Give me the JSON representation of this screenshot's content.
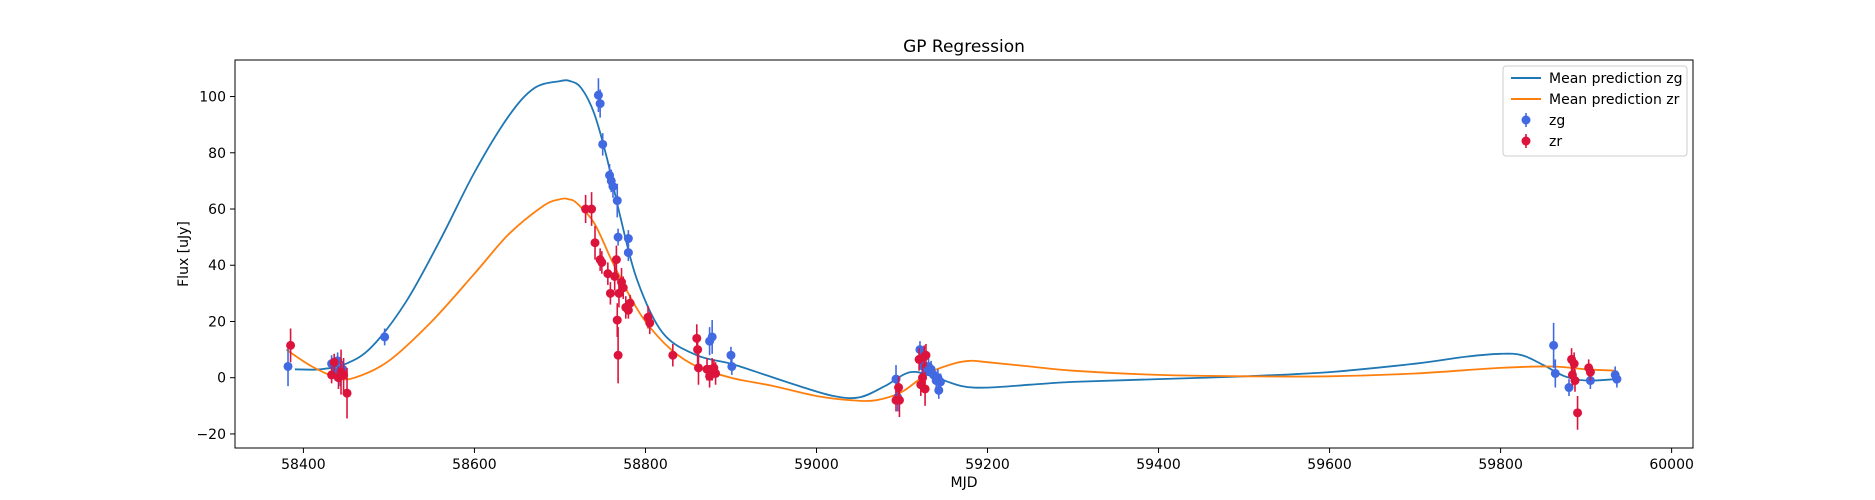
{
  "chart_data": {
    "type": "scatter",
    "title": "GP Regression",
    "xlabel": "MJD",
    "ylabel": "Flux [uJy]",
    "xlim": [
      58320,
      60025
    ],
    "ylim": [
      -25,
      113
    ],
    "xticks": [
      58400,
      58600,
      58800,
      59000,
      59200,
      59400,
      59600,
      59800,
      60000
    ],
    "yticks": [
      -20,
      0,
      20,
      40,
      60,
      80,
      100
    ],
    "legend_position": "top-right",
    "colors": {
      "mean_zg": "#1f77b4",
      "mean_zr": "#ff7f0e",
      "zg": "#4169e1",
      "zr": "#dc143c"
    },
    "lines": [
      {
        "name": "Mean prediction zg",
        "color_key": "mean_zg",
        "x": [
          58390,
          58420,
          58450,
          58480,
          58520,
          58560,
          58600,
          58640,
          58670,
          58700,
          58712,
          58725,
          58740,
          58755,
          58770,
          58790,
          58820,
          58860,
          58900,
          58940,
          58980,
          59020,
          59050,
          59080,
          59110,
          59140,
          59170,
          59200,
          59250,
          59300,
          59400,
          59500,
          59600,
          59700,
          59760,
          59800,
          59825,
          59850,
          59875,
          59900,
          59935
        ],
        "y": [
          3,
          3,
          5,
          11,
          27,
          49,
          73,
          93,
          103,
          105.5,
          105.5,
          103,
          94,
          78,
          58,
          35,
          16,
          8,
          5,
          1,
          -3,
          -6.5,
          -7,
          -3,
          2,
          0,
          -3,
          -3.5,
          -2.5,
          -1.5,
          -0.5,
          0.5,
          2,
          5,
          7.5,
          8.5,
          8,
          4.5,
          0.5,
          -1,
          -0.5
        ]
      },
      {
        "name": "Mean prediction zr",
        "color_key": "mean_zr",
        "x": [
          58380,
          58410,
          58440,
          58460,
          58500,
          58550,
          58600,
          58640,
          58680,
          58700,
          58710,
          58720,
          58740,
          58760,
          58780,
          58800,
          58830,
          58860,
          58900,
          58950,
          59000,
          59040,
          59070,
          59100,
          59130,
          59160,
          59180,
          59200,
          59250,
          59300,
          59400,
          59500,
          59600,
          59700,
          59800,
          59860,
          59900,
          59935
        ],
        "y": [
          10,
          4,
          0,
          0,
          6,
          20,
          37,
          51,
          61,
          63.5,
          63.5,
          62,
          55,
          42,
          30,
          20,
          10,
          4,
          0,
          -3,
          -6.5,
          -8,
          -8,
          -5,
          1.5,
          5,
          6,
          5.5,
          4,
          2.5,
          1,
          0.5,
          0.5,
          1.5,
          3.5,
          4,
          3,
          2.5
        ]
      }
    ],
    "series": [
      {
        "name": "zg",
        "color_key": "zg",
        "points": [
          {
            "x": 58382,
            "y": 4,
            "err": 7
          },
          {
            "x": 58433,
            "y": 5,
            "err": 3
          },
          {
            "x": 58437,
            "y": 2,
            "err": 3
          },
          {
            "x": 58440,
            "y": 6,
            "err": 3
          },
          {
            "x": 58443,
            "y": 1,
            "err": 4
          },
          {
            "x": 58446,
            "y": 3,
            "err": 3
          },
          {
            "x": 58495,
            "y": 14.5,
            "err": 3
          },
          {
            "x": 58745,
            "y": 100.5,
            "err": 6
          },
          {
            "x": 58747,
            "y": 97.5,
            "err": 5
          },
          {
            "x": 58750,
            "y": 83,
            "err": 4
          },
          {
            "x": 58758,
            "y": 72,
            "err": 4
          },
          {
            "x": 58760,
            "y": 70,
            "err": 4
          },
          {
            "x": 58762,
            "y": 68,
            "err": 4
          },
          {
            "x": 58767,
            "y": 63,
            "err": 6
          },
          {
            "x": 58768,
            "y": 50,
            "err": 3
          },
          {
            "x": 58780,
            "y": 49.5,
            "err": 3
          },
          {
            "x": 58780,
            "y": 44.5,
            "err": 3
          },
          {
            "x": 58875,
            "y": 13,
            "err": 5
          },
          {
            "x": 58878,
            "y": 14.5,
            "err": 6
          },
          {
            "x": 58900,
            "y": 8,
            "err": 3
          },
          {
            "x": 58901,
            "y": 4,
            "err": 3
          },
          {
            "x": 59093,
            "y": -0.5,
            "err": 5
          },
          {
            "x": 59095,
            "y": -7,
            "err": 5
          },
          {
            "x": 59121,
            "y": 10,
            "err": 3
          },
          {
            "x": 59125,
            "y": 4,
            "err": 3
          },
          {
            "x": 59128,
            "y": 2.5,
            "err": 3
          },
          {
            "x": 59131,
            "y": 4,
            "err": 3
          },
          {
            "x": 59134,
            "y": 3,
            "err": 3
          },
          {
            "x": 59137,
            "y": 1,
            "err": 3
          },
          {
            "x": 59140,
            "y": -1,
            "err": 3
          },
          {
            "x": 59142,
            "y": 0,
            "err": 3
          },
          {
            "x": 59143,
            "y": -4.5,
            "err": 3
          },
          {
            "x": 59145,
            "y": -1.5,
            "err": 3
          },
          {
            "x": 59862,
            "y": 11.5,
            "err": 8
          },
          {
            "x": 59864,
            "y": 1.5,
            "err": 5
          },
          {
            "x": 59880,
            "y": -3.5,
            "err": 3
          },
          {
            "x": 59905,
            "y": -1,
            "err": 3
          },
          {
            "x": 59934,
            "y": 1,
            "err": 3
          },
          {
            "x": 59936,
            "y": -0.5,
            "err": 3
          }
        ]
      },
      {
        "name": "zr",
        "color_key": "zr",
        "points": [
          {
            "x": 58385,
            "y": 11.5,
            "err": 6
          },
          {
            "x": 58433,
            "y": 1,
            "err": 3
          },
          {
            "x": 58436,
            "y": 5.5,
            "err": 3
          },
          {
            "x": 58441,
            "y": 0,
            "err": 4
          },
          {
            "x": 58444,
            "y": 2,
            "err": 8
          },
          {
            "x": 58447,
            "y": 1,
            "err": 6
          },
          {
            "x": 58451,
            "y": -5.5,
            "err": 9
          },
          {
            "x": 58730,
            "y": 60,
            "err": 5
          },
          {
            "x": 58737,
            "y": 60,
            "err": 6
          },
          {
            "x": 58741,
            "y": 48,
            "err": 6
          },
          {
            "x": 58747,
            "y": 42,
            "err": 4
          },
          {
            "x": 58749,
            "y": 41,
            "err": 4
          },
          {
            "x": 58756,
            "y": 37,
            "err": 4
          },
          {
            "x": 58759,
            "y": 30,
            "err": 4
          },
          {
            "x": 58764,
            "y": 36,
            "err": 5
          },
          {
            "x": 58766,
            "y": 42,
            "err": 5
          },
          {
            "x": 58767,
            "y": 20.5,
            "err": 6
          },
          {
            "x": 58768,
            "y": 8,
            "err": 10
          },
          {
            "x": 58769,
            "y": 30,
            "err": 5
          },
          {
            "x": 58772,
            "y": 34,
            "err": 5
          },
          {
            "x": 58774,
            "y": 32,
            "err": 4
          },
          {
            "x": 58777,
            "y": 25,
            "err": 4
          },
          {
            "x": 58780,
            "y": 24,
            "err": 3
          },
          {
            "x": 58782,
            "y": 26.5,
            "err": 3
          },
          {
            "x": 58803,
            "y": 21.5,
            "err": 4
          },
          {
            "x": 58805,
            "y": 19.5,
            "err": 4
          },
          {
            "x": 58832,
            "y": 8,
            "err": 4
          },
          {
            "x": 58860,
            "y": 14,
            "err": 5
          },
          {
            "x": 58861,
            "y": 10,
            "err": 5
          },
          {
            "x": 58862,
            "y": 3.5,
            "err": 6
          },
          {
            "x": 58872,
            "y": 3,
            "err": 4
          },
          {
            "x": 58875,
            "y": 0.5,
            "err": 4
          },
          {
            "x": 58878,
            "y": 3,
            "err": 4
          },
          {
            "x": 58880,
            "y": 3.5,
            "err": 3
          },
          {
            "x": 58882,
            "y": 1.5,
            "err": 4
          },
          {
            "x": 59093,
            "y": -8,
            "err": 4
          },
          {
            "x": 59096,
            "y": -3.5,
            "err": 4
          },
          {
            "x": 59097,
            "y": -8,
            "err": 6
          },
          {
            "x": 59120,
            "y": 6.5,
            "err": 4
          },
          {
            "x": 59122,
            "y": -2.5,
            "err": 4
          },
          {
            "x": 59124,
            "y": 0,
            "err": 5
          },
          {
            "x": 59126,
            "y": 7.5,
            "err": 4
          },
          {
            "x": 59127,
            "y": -4,
            "err": 6
          },
          {
            "x": 59128,
            "y": 8,
            "err": 4
          },
          {
            "x": 59883,
            "y": 6.5,
            "err": 4
          },
          {
            "x": 59884,
            "y": 1,
            "err": 4
          },
          {
            "x": 59886,
            "y": 5,
            "err": 4
          },
          {
            "x": 59887,
            "y": -1,
            "err": 4
          },
          {
            "x": 59890,
            "y": -12.5,
            "err": 6
          },
          {
            "x": 59903,
            "y": 3.5,
            "err": 3
          },
          {
            "x": 59905,
            "y": 2,
            "err": 3
          }
        ]
      }
    ]
  }
}
